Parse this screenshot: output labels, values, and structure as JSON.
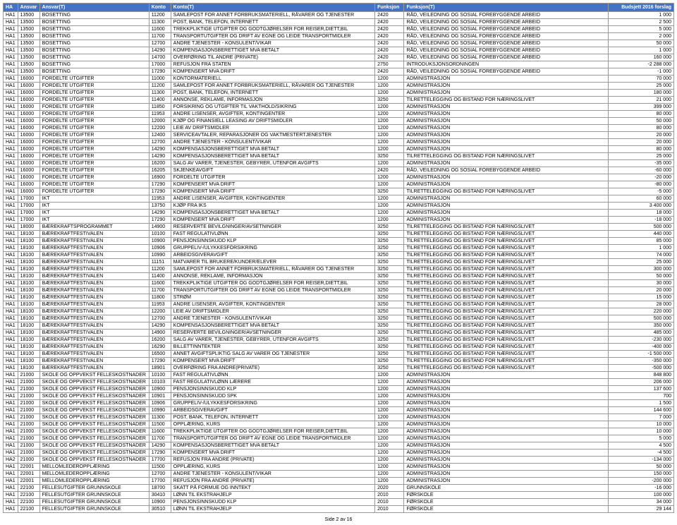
{
  "headers": [
    "HA",
    "Ansvar",
    "Ansvar(T)",
    "Konto",
    "Konto(T)",
    "Funksjon",
    "Funksjon(T)",
    "Budsjett 2016 forslag"
  ],
  "colWidths": [
    "2%",
    "3%",
    "15%",
    "3%",
    "28%",
    "4%",
    "28%",
    "9%"
  ],
  "footer": "Side 2 av 16",
  "rows": [
    [
      "HA1",
      "13500",
      "BOSETTING",
      "11200",
      "SAMLEPOST FOR ANNET FORBRUKSMATERIELL, RÅVARER OG TJENESTER",
      "2420",
      "RÅD, VEILEDNING OG SOSIAL FOREBYGGENDE ARBEID",
      "1 000"
    ],
    [
      "HA1",
      "13500",
      "BOSETTING",
      "11300",
      "POST, BANK, TELEFON, INTERNETT",
      "2420",
      "RÅD, VEILEDNING OG SOSIAL FOREBYGGENDE ARBEID",
      "2 500"
    ],
    [
      "HA1",
      "13500",
      "BOSETTING",
      "11600",
      "TREKKPLIKTIGE UTGIFTER OG GODTGJØRELSER FOR REISER,DIETT,BIL",
      "2420",
      "RÅD, VEILEDNING OG SOSIAL FOREBYGGENDE ARBEID",
      "5 000"
    ],
    [
      "HA1",
      "13500",
      "BOSETTING",
      "11700",
      "TRANSPORTUTGIFTER OG DRIFT AV EGNE OG LEIDE TRANSPORTMIDLER",
      "2420",
      "RÅD, VEILEDNING OG SOSIAL FOREBYGGENDE ARBEID",
      "2 000"
    ],
    [
      "HA1",
      "13500",
      "BOSETTING",
      "12700",
      "ANDRE TJENESTER - KONSULENT/VIKAR",
      "2420",
      "RÅD, VEILEDNING OG SOSIAL FOREBYGGENDE ARBEID",
      "50 000"
    ],
    [
      "HA1",
      "13500",
      "BOSETTING",
      "14290",
      "KOMPENSASJONSBERETTIGET MVA BETALT",
      "2420",
      "RÅD, VEILEDNING OG SOSIAL FOREBYGGENDE ARBEID",
      "1 000"
    ],
    [
      "HA1",
      "13500",
      "BOSETTING",
      "14700",
      "OVERFØRING TIL ANDRE (PRIVATE)",
      "2420",
      "RÅD, VEILEDNING OG SOSIAL FOREBYGGENDE ARBEID",
      "160 000"
    ],
    [
      "HA1",
      "13500",
      "BOSETTING",
      "17000",
      "REFUSJON FRA STATEN",
      "2750",
      "INTRODUKSJONSORDNINGEN",
      "-2 288 000"
    ],
    [
      "HA1",
      "13500",
      "BOSETTING",
      "17290",
      "KOMPENSERT MVA DRIFT",
      "2420",
      "RÅD, VEILEDNING OG SOSIAL FOREBYGGENDE ARBEID",
      "-1 000"
    ],
    [
      "HA1",
      "16000",
      "FORDELTE UTGIFTER",
      "11000",
      "KONTORMATERIELL",
      "1200",
      "ADMINISTRASJON",
      "70 000"
    ],
    [
      "HA1",
      "16000",
      "FORDELTE UTGIFTER",
      "11200",
      "SAMLEPOST FOR ANNET FORBRUKSMATERIELL, RÅVARER OG TJENESTER",
      "1200",
      "ADMINISTRASJON",
      "25 000"
    ],
    [
      "HA1",
      "16000",
      "FORDELTE UTGIFTER",
      "11300",
      "POST, BANK, TELEFON, INTERNETT",
      "1200",
      "ADMINISTRASJON",
      "180 000"
    ],
    [
      "HA1",
      "16000",
      "FORDELTE UTGIFTER",
      "11400",
      "ANNONSE, REKLAME, INFORMASJON",
      "3250",
      "TILRETTELEGGING OG BISTAND FOR NÆRINGSLIVET",
      "21 000"
    ],
    [
      "HA1",
      "16000",
      "FORDELTE UTGIFTER",
      "11850",
      "FORSIKRING OG UTGIFTER TIL VAKTHOLD/SIKRING",
      "1200",
      "ADMINISTRASJON",
      "399 000"
    ],
    [
      "HA1",
      "16000",
      "FORDELTE UTGIFTER",
      "11953",
      "ANDRE LISENSER, AVGIFTER, KONTINGENTER",
      "1200",
      "ADMINISTRASJON",
      "80 000"
    ],
    [
      "HA1",
      "16000",
      "FORDELTE UTGIFTER",
      "12000",
      "KJØP OG FINANSIELL LEASING AV DRIFTSMIDLER",
      "1200",
      "ADMINISTRASJON",
      "50 000"
    ],
    [
      "HA1",
      "16000",
      "FORDELTE UTGIFTER",
      "12200",
      "LEIE AV DRIFTSMIDLER",
      "1200",
      "ADMINISTRASJON",
      "80 000"
    ],
    [
      "HA1",
      "16000",
      "FORDELTE UTGIFTER",
      "12400",
      "SERVICEAVTALER, REPARASJONER OG VAKTMESTERTJENESTER",
      "1200",
      "ADMINISTRASJON",
      "20 000"
    ],
    [
      "HA1",
      "16000",
      "FORDELTE UTGIFTER",
      "12700",
      "ANDRE TJENESTER - KONSULENT/VIKAR",
      "1200",
      "ADMINISTRASJON",
      "20 000"
    ],
    [
      "HA1",
      "16000",
      "FORDELTE UTGIFTER",
      "14290",
      "KOMPENSASJONSBERETTIGET MVA BETALT",
      "1200",
      "ADMINISTRASJON",
      "80 000"
    ],
    [
      "HA1",
      "16000",
      "FORDELTE UTGIFTER",
      "14290",
      "KOMPENSASJONSBERETTIGET MVA BETALT",
      "3250",
      "TILRETTELEGGING OG BISTAND FOR NÆRINGSLIVET",
      "25 000"
    ],
    [
      "HA1",
      "16000",
      "FORDELTE UTGIFTER",
      "16200",
      "SALG AV VARER, TJENESTER, GEBYRER, UTENFOR AVGIFTS",
      "1200",
      "ADMINISTRASJON",
      "-35 000"
    ],
    [
      "HA1",
      "16000",
      "FORDELTE UTGIFTER",
      "16205",
      "SKJENKEAVGIFT",
      "2420",
      "RÅD, VEILEDNING OG SOSIAL FOREBYGGENDE ARBEID",
      "-60 000"
    ],
    [
      "HA1",
      "16000",
      "FORDELTE UTGIFTER",
      "16900",
      "FORDELTE UTGIFTER",
      "1200",
      "ADMINISTRASJON",
      "-20 000"
    ],
    [
      "HA1",
      "16000",
      "FORDELTE UTGIFTER",
      "17290",
      "KOMPENSERT MVA DRIFT",
      "1200",
      "ADMINISTRASJON",
      "-80 000"
    ],
    [
      "HA1",
      "16000",
      "FORDELTE UTGIFTER",
      "17290",
      "KOMPENSERT MVA DRIFT",
      "3250",
      "TILRETTELEGGING OG BISTAND FOR NÆRINGSLIVET",
      "-5 000"
    ],
    [
      "HA1",
      "17000",
      "IKT",
      "11953",
      "ANDRE LISENSER, AVGIFTER, KONTINGENTER",
      "1200",
      "ADMINISTRASJON",
      "60 000"
    ],
    [
      "HA1",
      "17000",
      "IKT",
      "13750",
      "KJØP FRA IKS",
      "1200",
      "ADMINISTRASJON",
      "3 400 000"
    ],
    [
      "HA1",
      "17000",
      "IKT",
      "14290",
      "KOMPENSASJONSBERETTIGET MVA BETALT",
      "1200",
      "ADMINISTRASJON",
      "18 000"
    ],
    [
      "HA1",
      "17000",
      "IKT",
      "17290",
      "KOMPENSERT MVA DRIFT",
      "1200",
      "ADMINISTRASJON",
      "-18 000"
    ],
    [
      "HA1",
      "18000",
      "BÆREKRAFTSPROGRAMMET",
      "14900",
      "RESERVERTE BEVILGNINGER/AVSETNINGER",
      "3250",
      "TILRETTELEGGING OG BISTAND FOR NÆRINGSLIVET",
      "500 000"
    ],
    [
      "HA1",
      "18100",
      "BÆREKRAFTFESTIVALEN",
      "10100",
      "FAST REGULATIVLØNN",
      "3250",
      "TILRETTELEGGING OG BISTAND FOR NÆRINGSLIVET",
      "440 000"
    ],
    [
      "HA1",
      "18100",
      "BÆREKRAFTFESTIVALEN",
      "10900",
      "PENSJONSINNSKUDD KLP",
      "3250",
      "TILRETTELEGGING OG BISTAND FOR NÆRINGSLIVET",
      "85 000"
    ],
    [
      "HA1",
      "18100",
      "BÆREKRAFTFESTIVALEN",
      "10906",
      "GRUPPELIV-/ULYKKESFORSIKRING",
      "3250",
      "TILRETTELEGGING OG BISTAND FOR NÆRINGSLIVET",
      "1 000"
    ],
    [
      "HA1",
      "18100",
      "BÆREKRAFTFESTIVALEN",
      "10990",
      "ARBEIDSGIVERAVGIFT",
      "3250",
      "TILRETTELEGGING OG BISTAND FOR NÆRINGSLIVET",
      "74 000"
    ],
    [
      "HA1",
      "18100",
      "BÆREKRAFTFESTIVALEN",
      "11151",
      "MATVARER TIL BRUKERE/KUNDER/ELEVER",
      "3250",
      "TILRETTELEGGING OG BISTAND FOR NÆRINGSLIVET",
      "25 000"
    ],
    [
      "HA1",
      "18100",
      "BÆREKRAFTFESTIVALEN",
      "11200",
      "SAMLEPOST FOR ANNET FORBRUKSMATERIELL, RÅVARER OG TJENESTER",
      "3250",
      "TILRETTELEGGING OG BISTAND FOR NÆRINGSLIVET",
      "300 000"
    ],
    [
      "HA1",
      "18100",
      "BÆREKRAFTFESTIVALEN",
      "11400",
      "ANNONSE, REKLAME, INFORMASJON",
      "3250",
      "TILRETTELEGGING OG BISTAND FOR NÆRINGSLIVET",
      "50 000"
    ],
    [
      "HA1",
      "18100",
      "BÆREKRAFTFESTIVALEN",
      "11600",
      "TREKKPLIKTIGE UTGIFTER OG GODTGJØRELSER FOR REISER,DIETT,BIL",
      "3250",
      "TILRETTELEGGING OG BISTAND FOR NÆRINGSLIVET",
      "30 000"
    ],
    [
      "HA1",
      "18100",
      "BÆREKRAFTFESTIVALEN",
      "11700",
      "TRANSPORTUTGIFTER OG DRIFT AV EGNE OG LEIDE TRANSPORTMIDLER",
      "3250",
      "TILRETTELEGGING OG BISTAND FOR NÆRINGSLIVET",
      "20 000"
    ],
    [
      "HA1",
      "18100",
      "BÆREKRAFTFESTIVALEN",
      "11800",
      "STRØM",
      "3250",
      "TILRETTELEGGING OG BISTAND FOR NÆRINGSLIVET",
      "15 000"
    ],
    [
      "HA1",
      "18100",
      "BÆREKRAFTFESTIVALEN",
      "11953",
      "ANDRE LISENSER, AVGIFTER, KONTINGENTER",
      "3250",
      "TILRETTELEGGING OG BISTAND FOR NÆRINGSLIVET",
      "28 000"
    ],
    [
      "HA1",
      "18100",
      "BÆREKRAFTFESTIVALEN",
      "12200",
      "LEIE AV DRIFTSMIDLER",
      "3250",
      "TILRETTELEGGING OG BISTAND FOR NÆRINGSLIVET",
      "220 000"
    ],
    [
      "HA1",
      "18100",
      "BÆREKRAFTFESTIVALEN",
      "12700",
      "ANDRE TJENESTER - KONSULENT/VIKAR",
      "3250",
      "TILRETTELEGGING OG BISTAND FOR NÆRINGSLIVET",
      "500 000"
    ],
    [
      "HA1",
      "18100",
      "BÆREKRAFTFESTIVALEN",
      "14290",
      "KOMPENSASJONSBERETTIGET MVA BETALT",
      "3250",
      "TILRETTELEGGING OG BISTAND FOR NÆRINGSLIVET",
      "350 000"
    ],
    [
      "HA1",
      "18100",
      "BÆREKRAFTFESTIVALEN",
      "14900",
      "RESERVERTE BEVILGNINGER/AVSETNINGER",
      "3250",
      "TILRETTELEGGING OG BISTAND FOR NÆRINGSLIVET",
      "485 000"
    ],
    [
      "HA1",
      "18100",
      "BÆREKRAFTFESTIVALEN",
      "16200",
      "SALG AV VARER, TJENESTER, GEBYRER, UTENFOR AVGIFTS",
      "3250",
      "TILRETTELEGGING OG BISTAND FOR NÆRINGSLIVET",
      "-230 000"
    ],
    [
      "HA1",
      "18100",
      "BÆREKRAFTFESTIVALEN",
      "16290",
      "BILLETTINNTEKTER",
      "3250",
      "TILRETTELEGGING OG BISTAND FOR NÆRINGSLIVET",
      "-400 000"
    ],
    [
      "HA1",
      "18100",
      "BÆREKRAFTFESTIVALEN",
      "16500",
      "ANNET AVGIFTSPLIKTIG SALG AV VARER OG TJENESTER",
      "3250",
      "TILRETTELEGGING OG BISTAND FOR NÆRINGSLIVET",
      "-1 500 000"
    ],
    [
      "HA1",
      "18100",
      "BÆREKRAFTFESTIVALEN",
      "17290",
      "KOMPENSERT MVA DRIFT",
      "3250",
      "TILRETTELEGGING OG BISTAND FOR NÆRINGSLIVET",
      "-350 000"
    ],
    [
      "HA1",
      "18100",
      "BÆREKRAFTFESTIVALEN",
      "18901",
      "OVERFØRING FRA ANDRE(PRIVATE)",
      "3250",
      "TILRETTELEGGING OG BISTAND FOR NÆRINGSLIVET",
      "-500 000"
    ],
    [
      "HA1",
      "21000",
      "SKOLE OG OPPVEKST FELLESKOSTNADER",
      "10100",
      "FAST REGULATIVLØNN",
      "1200",
      "ADMINISTRASJON",
      "848 800"
    ],
    [
      "HA1",
      "21000",
      "SKOLE OG OPPVEKST FELLESKOSTNADER",
      "10103",
      "FAST REGULATIVLØNN LÆRERE",
      "1200",
      "ADMINISTRASJON",
      "206 000"
    ],
    [
      "HA1",
      "21000",
      "SKOLE OG OPPVEKST FELLESKOSTNADER",
      "10900",
      "PENSJONSINNSKUDD KLP",
      "1200",
      "ADMINISTRASJON",
      "137 600"
    ],
    [
      "HA1",
      "21000",
      "SKOLE OG OPPVEKST FELLESKOSTNADER",
      "10901",
      "PENSJONSINNSKUDD SPK",
      "1200",
      "ADMINISTRASJON",
      "700"
    ],
    [
      "HA1",
      "21000",
      "SKOLE OG OPPVEKST FELLESKOSTNADER",
      "10906",
      "GRUPPELIV-/ULYKKESFORSIKRING",
      "1200",
      "ADMINISTRASJON",
      "1 500"
    ],
    [
      "HA1",
      "21000",
      "SKOLE OG OPPVEKST FELLESKOSTNADER",
      "10990",
      "ARBEIDSGIVERAVGIFT",
      "1200",
      "ADMINISTRASJON",
      "144 600"
    ],
    [
      "HA1",
      "21000",
      "SKOLE OG OPPVEKST FELLESKOSTNADER",
      "11300",
      "POST, BANK, TELEFON, INTERNETT",
      "1200",
      "ADMINISTRASJON",
      "7 000"
    ],
    [
      "HA1",
      "21000",
      "SKOLE OG OPPVEKST FELLESKOSTNADER",
      "11500",
      "OPPLÆRING, KURS",
      "1200",
      "ADMINISTRASJON",
      "10 000"
    ],
    [
      "HA1",
      "21000",
      "SKOLE OG OPPVEKST FELLESKOSTNADER",
      "11600",
      "TREKKPLIKTIGE UTGIFTER OG GODTGJØRELSER FOR REISER,DIETT,BIL",
      "1200",
      "ADMINISTRASJON",
      "10 000"
    ],
    [
      "HA1",
      "21000",
      "SKOLE OG OPPVEKST FELLESKOSTNADER",
      "11700",
      "TRANSPORTUTGIFTER OG DRIFT AV EGNE OG LEIDE TRANSPORTMIDLER",
      "1200",
      "ADMINISTRASJON",
      "5 000"
    ],
    [
      "HA1",
      "21000",
      "SKOLE OG OPPVEKST FELLESKOSTNADER",
      "14290",
      "KOMPENSASJONSBERETTIGET MVA BETALT",
      "1200",
      "ADMINISTRASJON",
      "4 500"
    ],
    [
      "HA1",
      "21000",
      "SKOLE OG OPPVEKST FELLESKOSTNADER",
      "17290",
      "KOMPENSERT MVA DRIFT",
      "1200",
      "ADMINISTRASJON",
      "-4 500"
    ],
    [
      "HA2",
      "21000",
      "SKOLE OG OPPVEKST FELLESKOSTNADER",
      "17700",
      "REFUSJON FRA ANDRE (PRIVATE)",
      "1200",
      "ADMINISTRASJON",
      "-134 000"
    ],
    [
      "HA1",
      "22001",
      "MELLOMLEDEROPPLÆRING",
      "11500",
      "OPPLÆRING, KURS",
      "1200",
      "ADMINISTRASJON",
      "50 000"
    ],
    [
      "HA1",
      "22001",
      "MELLOMLEDEROPPLÆRING",
      "12700",
      "ANDRE TJENESTER - KONSULENT/VIKAR",
      "1200",
      "ADMINISTRASJON",
      "150 000"
    ],
    [
      "HA1",
      "22001",
      "MELLOMLEDEROPPLÆRING",
      "17700",
      "REFUSJON FRA ANDRE (PRIVATE)",
      "1200",
      "ADMINISTRASJON",
      "-200 000"
    ],
    [
      "HA1",
      "22100",
      "FELLESUTGIFTER GRUNNSKOLE",
      "18700",
      "SKATT PÅ FORMUE OG INNTEKT",
      "2020",
      "GRUNNSKOLE",
      "-16 000"
    ],
    [
      "HA1",
      "22100",
      "FELLESUTGIFTER GRUNNSKOLE",
      "30410",
      "LØNN TIL EKSTRAHJELP",
      "2010",
      "FØRSKOLE",
      "100 000"
    ],
    [
      "HA1",
      "22100",
      "FELLESUTGIFTER GRUNNSKOLE",
      "10900",
      "PENSJONSINNSKUDD KLP",
      "2010",
      "FØRSKOLE",
      "34 000"
    ],
    [
      "HA1",
      "22100",
      "FELLESUTGIFTER GRUNNSKOLE",
      "30510",
      "LØNN TIL EKSTRAHJELP",
      "2010",
      "FØRSKOLE",
      "29 144"
    ]
  ]
}
